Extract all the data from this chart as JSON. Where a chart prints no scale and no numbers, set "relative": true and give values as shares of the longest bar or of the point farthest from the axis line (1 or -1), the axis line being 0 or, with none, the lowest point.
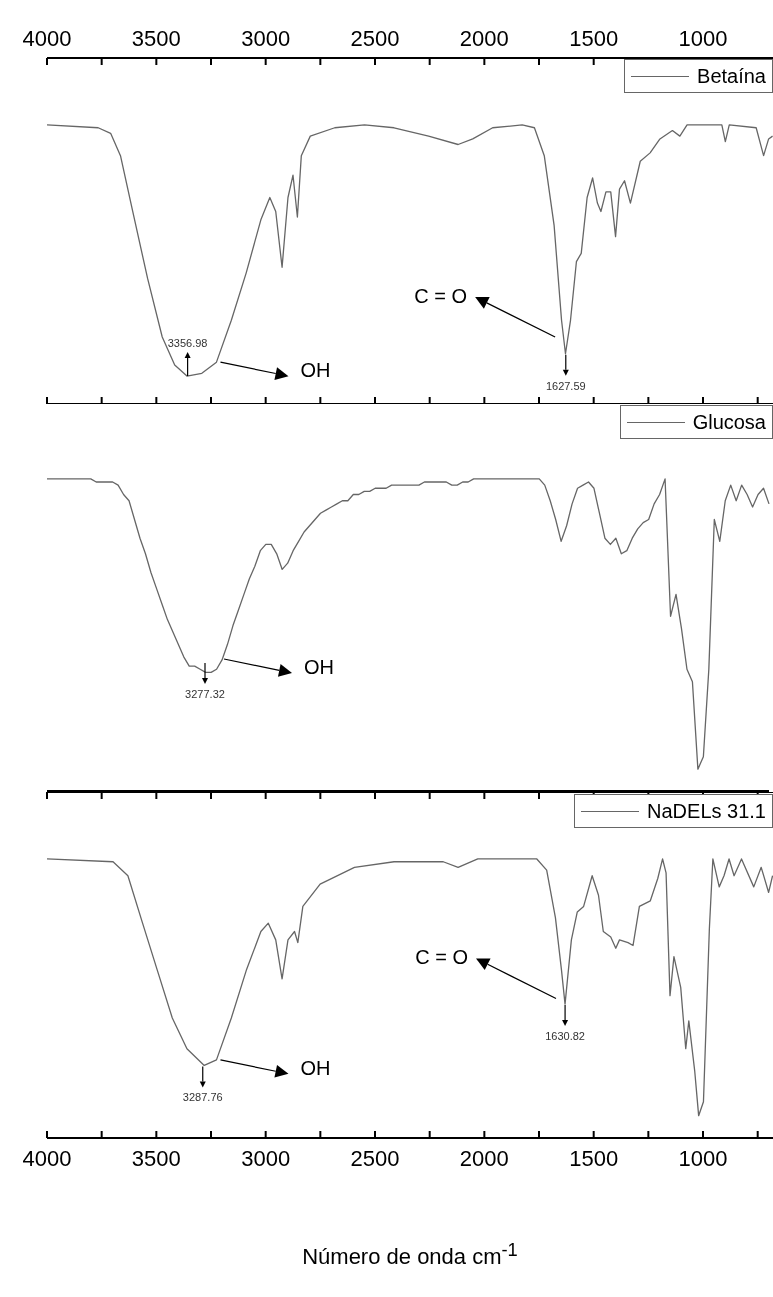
{
  "chart_data": [
    {
      "type": "line",
      "relative": true,
      "legend": "top right",
      "x": [
        4000,
        3766,
        3709,
        3664,
        3608,
        3540,
        3473,
        3416,
        3360,
        3292,
        3225,
        3157,
        3089,
        3022,
        2981,
        2954,
        2925,
        2898,
        2875,
        2855,
        2837,
        2796,
        2684,
        2548,
        2413,
        2255,
        2120,
        2053,
        1962,
        1827,
        1771,
        1726,
        1681,
        1647,
        1629,
        1606,
        1579,
        1557,
        1530,
        1505,
        1483,
        1467,
        1444,
        1422,
        1400,
        1382,
        1359,
        1332,
        1287,
        1242,
        1197,
        1140,
        1106,
        1073,
        993,
        914,
        898,
        880,
        757,
        723,
        700,
        682
      ],
      "series": [
        {
          "name": "Betaína",
          "color": "#666666",
          "values": [
            1,
            0.99,
            0.97,
            0.89,
            0.69,
            0.45,
            0.24,
            0.14,
            0.1,
            0.11,
            0.15,
            0.3,
            0.47,
            0.66,
            0.74,
            0.69,
            0.49,
            0.74,
            0.82,
            0.67,
            0.89,
            0.96,
            0.99,
            1,
            0.99,
            0.96,
            0.93,
            0.95,
            0.99,
            1,
            0.99,
            0.89,
            0.64,
            0.3,
            0.18,
            0.3,
            0.51,
            0.54,
            0.74,
            0.81,
            0.72,
            0.69,
            0.76,
            0.76,
            0.6,
            0.77,
            0.8,
            0.72,
            0.87,
            0.9,
            0.95,
            0.98,
            0.96,
            1,
            1,
            1,
            0.94,
            1,
            0.99,
            0.89,
            0.95,
            0.96
          ]
        }
      ],
      "xlim": [
        4000,
        680
      ],
      "xticks": [
        4000,
        {
          "value": 3750,
          "label": null
        },
        3500,
        {
          "value": 3250,
          "label": null
        },
        3000,
        {
          "value": 2750,
          "label": null
        },
        2500,
        {
          "value": 2250,
          "label": null
        },
        2000,
        {
          "value": 1750,
          "label": null
        },
        1500,
        {
          "value": 1250,
          "label": null
        },
        1000,
        {
          "value": 750,
          "label": null
        }
      ],
      "annotations": [
        {
          "text": "3356.98",
          "x": 3356.98,
          "y": 0.1
        },
        {
          "text": "OH",
          "x": 3225,
          "y": 0.15
        },
        {
          "text": "C = O",
          "x": 1658,
          "y": 0.24
        },
        {
          "text": "1627.59",
          "x": 1627.59,
          "y": 0.18
        }
      ]
    },
    {
      "type": "line",
      "relative": true,
      "legend": "top right",
      "categories": [
        null,
        null,
        null,
        null,
        null,
        null,
        null,
        null,
        null,
        null,
        null,
        null,
        null,
        null,
        null,
        null,
        null,
        null,
        null,
        null,
        null,
        null,
        null,
        null,
        null,
        null,
        null,
        null,
        null,
        null,
        null,
        null,
        null,
        null,
        null,
        null,
        null,
        null,
        null,
        null,
        null,
        null,
        null,
        null,
        null,
        null,
        null,
        null,
        null,
        null,
        null,
        null,
        null,
        null,
        null,
        null,
        null,
        null,
        null,
        null,
        null,
        null,
        null,
        null,
        null,
        null,
        null,
        null,
        null,
        null,
        null,
        null,
        null,
        null,
        null,
        null,
        null,
        null,
        null,
        null,
        null,
        null,
        null,
        null,
        null,
        null,
        null,
        null,
        null,
        null,
        null,
        null,
        null,
        null,
        null,
        null,
        null,
        null,
        null,
        null,
        null,
        null,
        null,
        null,
        null,
        null,
        null,
        null,
        null,
        null,
        null,
        null,
        null,
        null,
        null,
        null,
        null,
        null,
        null,
        null,
        null,
        null,
        null,
        null,
        null,
        null,
        null,
        null,
        null,
        null,
        null,
        null,
        null
      ],
      "series": [
        {
          "name": "Glucosa",
          "color": "#666666",
          "values": [
            1,
            1,
            1,
            1,
            1,
            1,
            1,
            1,
            1,
            0.99,
            0.99,
            0.99,
            0.99,
            0.98,
            0.95,
            0.93,
            0.87,
            0.81,
            0.76,
            0.7,
            0.65,
            0.6,
            0.55,
            0.51,
            0.47,
            0.43,
            0.4,
            0.4,
            0.39,
            0.38,
            0.38,
            0.39,
            0.42,
            0.47,
            0.53,
            0.58,
            0.63,
            0.68,
            0.72,
            0.77,
            0.79,
            0.79,
            0.76,
            0.71,
            0.73,
            0.77,
            0.8,
            0.83,
            0.85,
            0.87,
            0.89,
            0.9,
            0.91,
            0.92,
            0.93,
            0.93,
            0.95,
            0.95,
            0.96,
            0.96,
            0.97,
            0.97,
            0.97,
            0.98,
            0.98,
            0.98,
            0.98,
            0.98,
            0.98,
            0.99,
            0.99,
            0.99,
            0.99,
            0.99,
            0.98,
            0.98,
            0.99,
            0.99,
            1,
            1,
            1,
            1,
            1,
            1,
            1,
            1,
            1,
            1,
            1,
            1,
            1,
            0.98,
            0.93,
            0.87,
            0.8,
            0.85,
            0.92,
            0.97,
            0.98,
            0.99,
            0.97,
            0.89,
            0.81,
            0.79,
            0.81,
            0.76,
            0.77,
            0.81,
            0.84,
            0.86,
            0.87,
            0.92,
            0.95,
            1,
            0.56,
            0.63,
            0.52,
            0.39,
            0.35,
            0.07,
            0.11,
            0.39,
            0.87,
            0.8,
            0.93,
            0.98,
            0.93,
            0.98,
            0.95,
            0.91,
            0.95,
            0.97,
            0.92
          ]
        }
      ],
      "annotations": [
        "3277.32",
        "OH"
      ]
    },
    {
      "type": "line",
      "relative": true,
      "legend": "top right",
      "x": [
        4000,
        3698,
        3630,
        3563,
        3495,
        3427,
        3360,
        3281,
        3225,
        3157,
        3089,
        3022,
        2988,
        2954,
        2925,
        2898,
        2868,
        2853,
        2830,
        2751,
        2594,
        2413,
        2188,
        2120,
        2030,
        1760,
        1715,
        1675,
        1647,
        1631,
        1602,
        1575,
        1546,
        1507,
        1478,
        1456,
        1422,
        1399,
        1382,
        1343,
        1320,
        1291,
        1241,
        1207,
        1185,
        1169,
        1151,
        1133,
        1102,
        1079,
        1065,
        1038,
        1020,
        998,
        971,
        955,
        926,
        904,
        881,
        858,
        824,
        768,
        734,
        700,
        682
      ],
      "series": [
        {
          "name": "NaDELs 31.1",
          "color": "#666666",
          "values": [
            1,
            0.99,
            0.94,
            0.77,
            0.6,
            0.43,
            0.32,
            0.26,
            0.28,
            0.43,
            0.6,
            0.74,
            0.77,
            0.71,
            0.57,
            0.71,
            0.74,
            0.7,
            0.83,
            0.91,
            0.97,
            0.99,
            0.99,
            0.97,
            1,
            1,
            0.96,
            0.79,
            0.6,
            0.48,
            0.71,
            0.81,
            0.83,
            0.94,
            0.87,
            0.74,
            0.72,
            0.68,
            0.71,
            0.7,
            0.69,
            0.83,
            0.85,
            0.93,
            1,
            0.95,
            0.51,
            0.65,
            0.54,
            0.32,
            0.42,
            0.24,
            0.08,
            0.13,
            0.75,
            1,
            0.9,
            0.94,
            1,
            0.94,
            1,
            0.9,
            0.97,
            0.88,
            0.94
          ]
        }
      ],
      "xlim": [
        4000,
        680
      ],
      "xticks": [
        4000,
        {
          "value": 3750,
          "label": null
        },
        3500,
        {
          "value": 3250,
          "label": null
        },
        3000,
        {
          "value": 2750,
          "label": null
        },
        2500,
        {
          "value": 2250,
          "label": null
        },
        2000,
        {
          "value": 1750,
          "label": null
        },
        1500,
        {
          "value": 1250,
          "label": null
        },
        1000,
        {
          "value": 750,
          "label": null
        }
      ],
      "xlabel": "Número de onda cm$^{-1}$",
      "annotations": [
        {
          "text": "3287.76",
          "x": 3287.76,
          "y": 0.26
        },
        {
          "text": "OH",
          "x": 3225,
          "y": 0.28
        },
        {
          "text": "C = O",
          "x": 1654,
          "y": 0.5
        },
        {
          "text": "1630.82",
          "x": 1630.82,
          "y": 0.48
        }
      ]
    }
  ]
}
